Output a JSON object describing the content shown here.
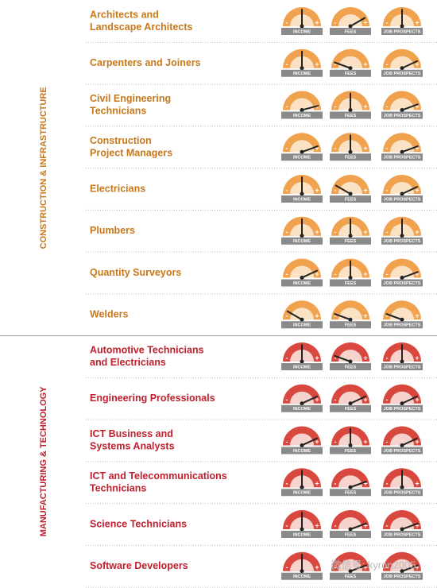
{
  "gauge_labels": [
    "INCOME",
    "FEES",
    "JOB PROSPECTS"
  ],
  "minus": "-",
  "plus": "+",
  "watermark": "微信号: kyron2005",
  "sections": [
    {
      "label": "CONSTRUCTION & INFRASTRUCTURE",
      "color": "#c8781a",
      "gauge_color": "#f0a24e",
      "gauge_light": "#fbe2c4",
      "rows": [
        {
          "title": [
            "Architects and",
            "Landscape Architects"
          ],
          "needles": [
            0,
            60,
            0
          ]
        },
        {
          "title": [
            "Carpenters and Joiners"
          ],
          "needles": [
            0,
            -70,
            65
          ]
        },
        {
          "title": [
            "Civil Engineering",
            "Technicians"
          ],
          "needles": [
            75,
            0,
            70
          ]
        },
        {
          "title": [
            "Construction",
            "Project Managers"
          ],
          "needles": [
            70,
            0,
            70
          ]
        },
        {
          "title": [
            "Electricians"
          ],
          "needles": [
            0,
            -60,
            65
          ]
        },
        {
          "title": [
            "Plumbers"
          ],
          "needles": [
            0,
            0,
            0
          ]
        },
        {
          "title": [
            "Quantity Surveyors"
          ],
          "needles": [
            65,
            0,
            70
          ]
        },
        {
          "title": [
            "Welders"
          ],
          "needles": [
            -60,
            -70,
            -70
          ]
        }
      ]
    },
    {
      "label": "MANUFACTURING & TECHNOLOGY",
      "color": "#c01f2c",
      "gauge_color": "#d9483e",
      "gauge_light": "#f6d3cc",
      "rows": [
        {
          "title": [
            "Automotive Technicians",
            "and Electricians"
          ],
          "needles": [
            0,
            -70,
            0
          ]
        },
        {
          "title": [
            "Engineering Professionals"
          ],
          "needles": [
            65,
            65,
            65
          ]
        },
        {
          "title": [
            "ICT Business and",
            "Systems Analysts"
          ],
          "needles": [
            65,
            0,
            65
          ]
        },
        {
          "title": [
            "ICT and Telecommunications",
            "Technicians"
          ],
          "needles": [
            0,
            70,
            0
          ]
        },
        {
          "title": [
            "Science Technicians"
          ],
          "needles": [
            0,
            70,
            70
          ]
        },
        {
          "title": [
            "Software Developers"
          ],
          "needles": [
            0,
            70,
            70
          ]
        }
      ]
    }
  ]
}
